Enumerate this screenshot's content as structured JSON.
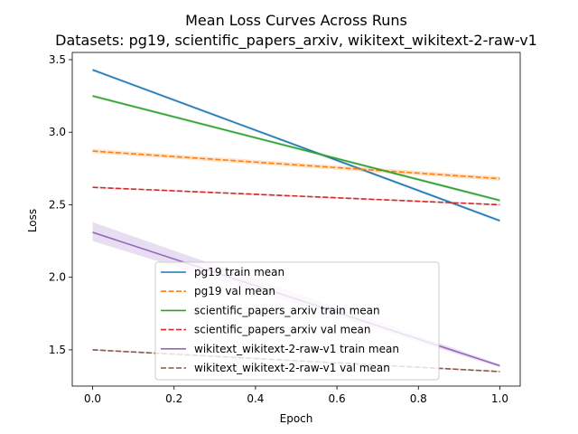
{
  "chart_data": {
    "type": "line",
    "title": "Mean Loss Curves Across Runs",
    "subtitle": "Datasets: pg19, scientific_papers_arxiv, wikitext_wikitext-2-raw-v1",
    "xlabel": "Epoch",
    "ylabel": "Loss",
    "xlim": [
      -0.05,
      1.05
    ],
    "ylim": [
      1.25,
      3.55
    ],
    "xticks": [
      0.0,
      0.2,
      0.4,
      0.6,
      0.8,
      1.0
    ],
    "xtick_labels": [
      "0.0",
      "0.2",
      "0.4",
      "0.6",
      "0.8",
      "1.0"
    ],
    "yticks": [
      1.5,
      2.0,
      2.5,
      3.0,
      3.5
    ],
    "ytick_labels": [
      "1.5",
      "2.0",
      "2.5",
      "3.0",
      "3.5"
    ],
    "grid": false,
    "legend_position": "lower-center",
    "series": [
      {
        "name": "pg19 train mean",
        "color": "#1f77b4",
        "dash": "solid",
        "x": [
          0,
          1
        ],
        "y": [
          3.43,
          2.39
        ],
        "band": 0.01
      },
      {
        "name": "pg19 val mean",
        "color": "#ff7f0e",
        "dash": "dashed",
        "x": [
          0,
          1
        ],
        "y": [
          2.87,
          2.68
        ],
        "band": 0.015
      },
      {
        "name": "scientific_papers_arxiv train mean",
        "color": "#2ca02c",
        "dash": "solid",
        "x": [
          0,
          1
        ],
        "y": [
          3.25,
          2.53
        ],
        "band": 0.01
      },
      {
        "name": "scientific_papers_arxiv val mean",
        "color": "#d62728",
        "dash": "dashed",
        "x": [
          0,
          1
        ],
        "y": [
          2.62,
          2.5
        ],
        "band": 0.005
      },
      {
        "name": "wikitext_wikitext-2-raw-v1 train mean",
        "color": "#9467bd",
        "dash": "solid",
        "x": [
          0,
          1
        ],
        "y": [
          2.31,
          1.39
        ],
        "band_lower": [
          2.25,
          1.38
        ],
        "band_upper": [
          2.38,
          1.4
        ]
      },
      {
        "name": "wikitext_wikitext-2-raw-v1 val mean",
        "color": "#8c564b",
        "dash": "dashed",
        "x": [
          0,
          1
        ],
        "y": [
          1.5,
          1.35
        ],
        "band": 0.005
      }
    ]
  }
}
